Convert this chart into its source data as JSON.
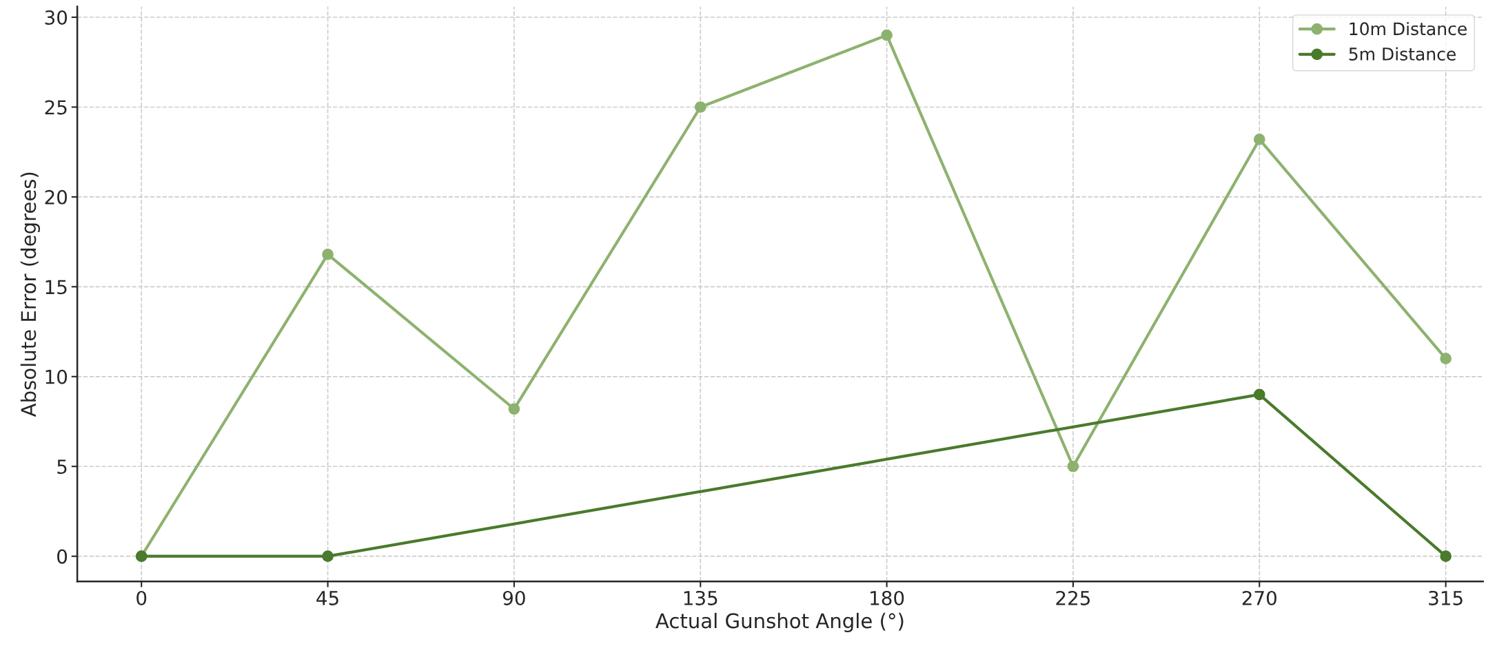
{
  "chart_data": {
    "type": "line",
    "xlabel": "Actual Gunshot Angle (°)",
    "ylabel": "Absolute Error (degrees)",
    "x": [
      0,
      45,
      90,
      135,
      180,
      225,
      270,
      315
    ],
    "series": [
      {
        "name": "10m Distance",
        "color": "#8db26f",
        "values": [
          0,
          16.8,
          8.2,
          25,
          29,
          5,
          23.2,
          11
        ]
      },
      {
        "name": "5m Distance",
        "color": "#4a7a2b",
        "x": [
          0,
          45,
          270,
          315
        ],
        "values": [
          0,
          0,
          9,
          0
        ]
      }
    ],
    "xlim": [
      -15.5,
      324
    ],
    "ylim": [
      -1.4,
      30.6
    ],
    "xticks": [
      0,
      45,
      90,
      135,
      180,
      225,
      270,
      315
    ],
    "yticks": [
      0,
      5,
      10,
      15,
      20,
      25,
      30
    ],
    "grid": true,
    "legend": "top right",
    "marker": "circle",
    "line_style": "solid"
  }
}
